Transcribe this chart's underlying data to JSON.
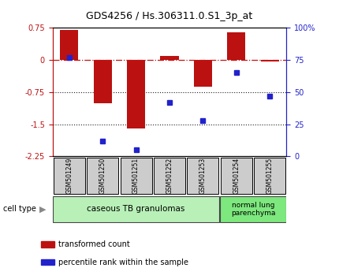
{
  "title": "GDS4256 / Hs.306311.0.S1_3p_at",
  "samples": [
    "GSM501249",
    "GSM501250",
    "GSM501251",
    "GSM501252",
    "GSM501253",
    "GSM501254",
    "GSM501255"
  ],
  "red_bars": [
    0.7,
    -1.02,
    -1.6,
    0.1,
    -0.62,
    0.65,
    -0.03
  ],
  "blue_dots": [
    77,
    12,
    5,
    42,
    28,
    65,
    47
  ],
  "ylim_left": [
    -2.25,
    0.75
  ],
  "ylim_right": [
    0,
    100
  ],
  "yticks_left": [
    0.75,
    0,
    -0.75,
    -1.5,
    -2.25
  ],
  "yticks_right": [
    100,
    75,
    50,
    25,
    0
  ],
  "yticklabels_right": [
    "100%",
    "75",
    "50",
    "25",
    "0"
  ],
  "cell_type_groups": [
    {
      "label": "caseous TB granulomas",
      "start": 0,
      "end": 5,
      "color": "#b8f0b8"
    },
    {
      "label": "normal lung\nparenchyma",
      "start": 5,
      "end": 7,
      "color": "#7de87d"
    }
  ],
  "bar_color": "#bb1111",
  "dot_color": "#2222cc",
  "hline_color": "#cc1111",
  "dotted_line_color": "#222222",
  "bg_plot": "#ffffff",
  "bg_fig": "#ffffff",
  "legend_red_label": "transformed count",
  "legend_blue_label": "percentile rank within the sample",
  "cell_type_label": "cell type",
  "bar_width": 0.55,
  "sample_box_color": "#cccccc"
}
